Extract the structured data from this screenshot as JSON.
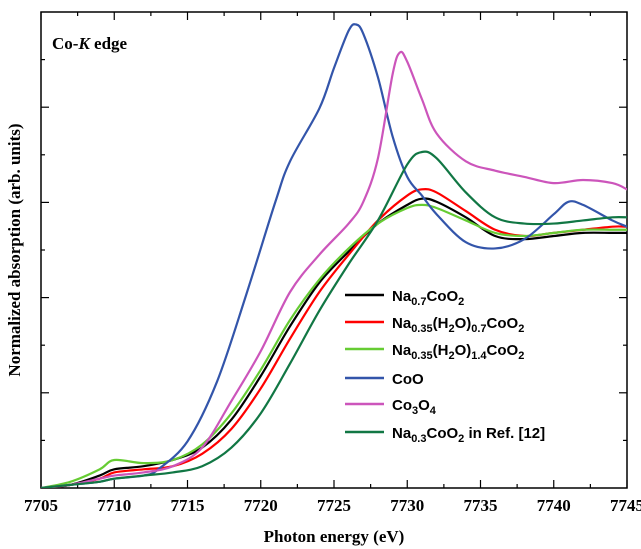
{
  "chart_data": {
    "type": "line",
    "title": "",
    "annotation": {
      "prefix": "Co-",
      "italic": "K",
      "suffix": " edge"
    },
    "xlabel": "Photon energy (eV)",
    "ylabel": "Normalized absorption (arb. units)",
    "xlim": [
      7705,
      7745
    ],
    "ylim": [
      0,
      1.53
    ],
    "x_ticks": [
      7705,
      7710,
      7715,
      7720,
      7725,
      7730,
      7735,
      7740,
      7745
    ],
    "y_tick_labels_shown": false,
    "grid": false,
    "legend_position": "lower-right",
    "series": [
      {
        "name": "Na0.7CoO2",
        "label": {
          "parts": [
            [
              "Na",
              ""
            ],
            [
              "0.7",
              "sub"
            ],
            [
              "CoO",
              ""
            ],
            [
              "2",
              "sub"
            ]
          ]
        },
        "color": "#000000",
        "points": [
          [
            7705,
            0.0
          ],
          [
            7707,
            0.01
          ],
          [
            7709,
            0.04
          ],
          [
            7710,
            0.06
          ],
          [
            7712,
            0.07
          ],
          [
            7714,
            0.09
          ],
          [
            7716,
            0.13
          ],
          [
            7718,
            0.22
          ],
          [
            7720,
            0.36
          ],
          [
            7722,
            0.52
          ],
          [
            7724,
            0.66
          ],
          [
            7726,
            0.76
          ],
          [
            7728,
            0.85
          ],
          [
            7730,
            0.91
          ],
          [
            7731,
            0.93
          ],
          [
            7732,
            0.92
          ],
          [
            7734,
            0.87
          ],
          [
            7736,
            0.81
          ],
          [
            7738,
            0.8
          ],
          [
            7740,
            0.81
          ],
          [
            7742,
            0.82
          ],
          [
            7744,
            0.82
          ],
          [
            7745,
            0.82
          ]
        ]
      },
      {
        "name": "Na0.35(H2O)0.7CoO2",
        "label": {
          "parts": [
            [
              "Na",
              ""
            ],
            [
              "0.35",
              "sub"
            ],
            [
              "(H",
              ""
            ],
            [
              "2",
              "sub"
            ],
            [
              "O)",
              ""
            ],
            [
              "0.7",
              "sub"
            ],
            [
              "CoO",
              ""
            ],
            [
              "2",
              "sub"
            ]
          ]
        },
        "color": "#ff0000",
        "points": [
          [
            7705,
            0.0
          ],
          [
            7707,
            0.01
          ],
          [
            7709,
            0.03
          ],
          [
            7710,
            0.05
          ],
          [
            7712,
            0.06
          ],
          [
            7714,
            0.07
          ],
          [
            7716,
            0.11
          ],
          [
            7718,
            0.19
          ],
          [
            7720,
            0.32
          ],
          [
            7722,
            0.48
          ],
          [
            7724,
            0.63
          ],
          [
            7726,
            0.75
          ],
          [
            7728,
            0.86
          ],
          [
            7730,
            0.94
          ],
          [
            7731,
            0.96
          ],
          [
            7732,
            0.95
          ],
          [
            7734,
            0.89
          ],
          [
            7736,
            0.83
          ],
          [
            7738,
            0.81
          ],
          [
            7740,
            0.82
          ],
          [
            7742,
            0.83
          ],
          [
            7744,
            0.84
          ],
          [
            7745,
            0.84
          ]
        ]
      },
      {
        "name": "Na0.35(H2O)1.4CoO2",
        "label": {
          "parts": [
            [
              "Na",
              ""
            ],
            [
              "0.35",
              "sub"
            ],
            [
              "(H",
              ""
            ],
            [
              "2",
              "sub"
            ],
            [
              "O)",
              ""
            ],
            [
              "1.4",
              "sub"
            ],
            [
              "CoO",
              ""
            ],
            [
              "2",
              "sub"
            ]
          ]
        },
        "color": "#66cc33",
        "points": [
          [
            7705,
            0.0
          ],
          [
            7707,
            0.02
          ],
          [
            7709,
            0.06
          ],
          [
            7710,
            0.09
          ],
          [
            7712,
            0.08
          ],
          [
            7714,
            0.09
          ],
          [
            7716,
            0.14
          ],
          [
            7718,
            0.24
          ],
          [
            7720,
            0.38
          ],
          [
            7722,
            0.54
          ],
          [
            7724,
            0.67
          ],
          [
            7726,
            0.77
          ],
          [
            7728,
            0.85
          ],
          [
            7730,
            0.9
          ],
          [
            7731,
            0.91
          ],
          [
            7732,
            0.9
          ],
          [
            7734,
            0.86
          ],
          [
            7736,
            0.82
          ],
          [
            7738,
            0.81
          ],
          [
            7740,
            0.82
          ],
          [
            7742,
            0.83
          ],
          [
            7744,
            0.83
          ],
          [
            7745,
            0.83
          ]
        ]
      },
      {
        "name": "CoO",
        "label": {
          "parts": [
            [
              "CoO",
              ""
            ]
          ]
        },
        "color": "#3355aa",
        "points": [
          [
            7705,
            0.0
          ],
          [
            7707,
            0.01
          ],
          [
            7709,
            0.02
          ],
          [
            7710,
            0.03
          ],
          [
            7712,
            0.04
          ],
          [
            7713,
            0.06
          ],
          [
            7715,
            0.15
          ],
          [
            7717,
            0.34
          ],
          [
            7719,
            0.62
          ],
          [
            7721,
            0.92
          ],
          [
            7722,
            1.05
          ],
          [
            7724,
            1.22
          ],
          [
            7725,
            1.35
          ],
          [
            7726,
            1.47
          ],
          [
            7726.5,
            1.49
          ],
          [
            7727,
            1.46
          ],
          [
            7728,
            1.32
          ],
          [
            7729,
            1.13
          ],
          [
            7730,
            1.0
          ],
          [
            7731,
            0.94
          ],
          [
            7732,
            0.88
          ],
          [
            7734,
            0.79
          ],
          [
            7736,
            0.77
          ],
          [
            7738,
            0.8
          ],
          [
            7740,
            0.88
          ],
          [
            7741,
            0.92
          ],
          [
            7742,
            0.91
          ],
          [
            7744,
            0.86
          ],
          [
            7745,
            0.84
          ]
        ]
      },
      {
        "name": "Co3O4",
        "label": {
          "parts": [
            [
              "Co",
              ""
            ],
            [
              "3",
              "sub"
            ],
            [
              "O",
              ""
            ],
            [
              "4",
              "sub"
            ]
          ]
        },
        "color": "#cc55bb",
        "points": [
          [
            7705,
            0.0
          ],
          [
            7707,
            0.01
          ],
          [
            7709,
            0.03
          ],
          [
            7710,
            0.04
          ],
          [
            7712,
            0.05
          ],
          [
            7714,
            0.07
          ],
          [
            7716,
            0.13
          ],
          [
            7718,
            0.28
          ],
          [
            7720,
            0.44
          ],
          [
            7722,
            0.63
          ],
          [
            7724,
            0.75
          ],
          [
            7726,
            0.85
          ],
          [
            7727,
            0.92
          ],
          [
            7728,
            1.06
          ],
          [
            7729,
            1.33
          ],
          [
            7729.5,
            1.4
          ],
          [
            7730,
            1.37
          ],
          [
            7731,
            1.25
          ],
          [
            7732,
            1.14
          ],
          [
            7734,
            1.05
          ],
          [
            7736,
            1.02
          ],
          [
            7738,
            1.0
          ],
          [
            7740,
            0.98
          ],
          [
            7742,
            0.99
          ],
          [
            7744,
            0.98
          ],
          [
            7745,
            0.96
          ]
        ]
      },
      {
        "name": "Na0.3CoO2 in Ref. [12]",
        "label": {
          "parts": [
            [
              "Na",
              ""
            ],
            [
              "0.3",
              "sub"
            ],
            [
              "CoO",
              ""
            ],
            [
              "2",
              "sub"
            ],
            [
              " in Ref. [12]",
              ""
            ]
          ]
        },
        "color": "#117744",
        "points": [
          [
            7705,
            0.0
          ],
          [
            7707,
            0.01
          ],
          [
            7709,
            0.02
          ],
          [
            7710,
            0.03
          ],
          [
            7712,
            0.04
          ],
          [
            7714,
            0.05
          ],
          [
            7716,
            0.07
          ],
          [
            7718,
            0.13
          ],
          [
            7720,
            0.24
          ],
          [
            7722,
            0.4
          ],
          [
            7724,
            0.57
          ],
          [
            7726,
            0.72
          ],
          [
            7728,
            0.86
          ],
          [
            7730,
            1.04
          ],
          [
            7731,
            1.08
          ],
          [
            7732,
            1.06
          ],
          [
            7734,
            0.95
          ],
          [
            7736,
            0.87
          ],
          [
            7738,
            0.85
          ],
          [
            7740,
            0.85
          ],
          [
            7742,
            0.86
          ],
          [
            7744,
            0.87
          ],
          [
            7745,
            0.87
          ]
        ]
      }
    ]
  }
}
